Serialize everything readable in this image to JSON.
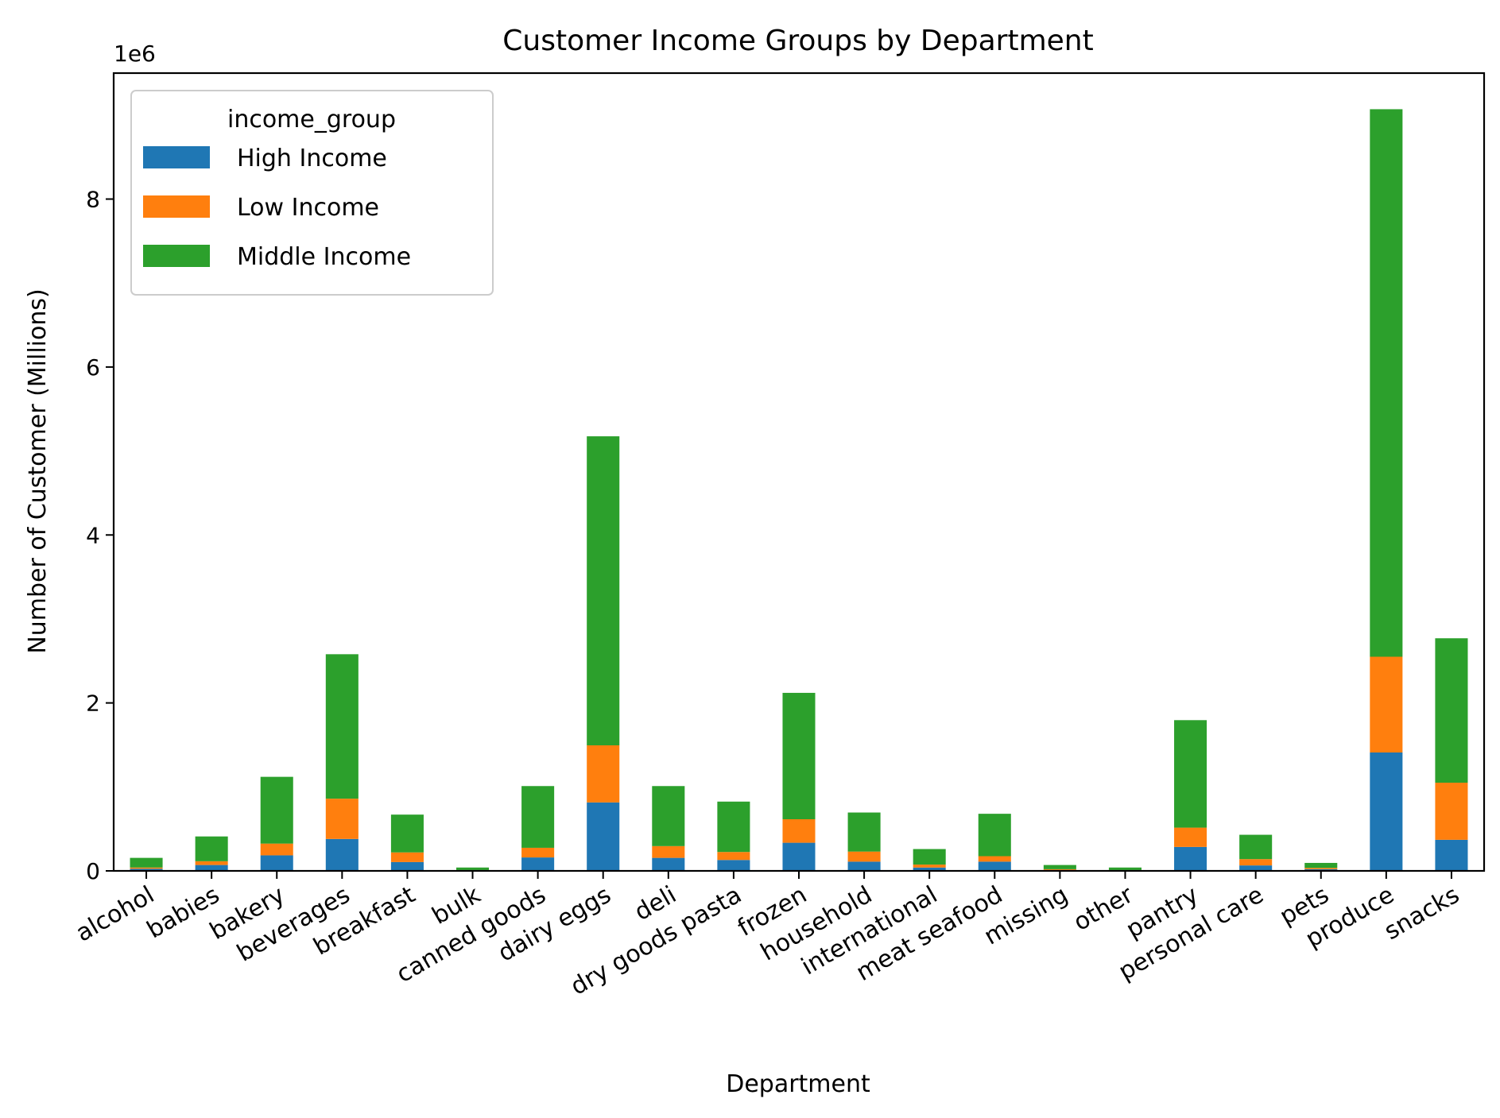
{
  "chart_data": {
    "type": "bar",
    "stacked": true,
    "title": "Customer Income Groups by Department",
    "xlabel": "Department",
    "ylabel": "Number of Customer (Millions)",
    "offset_label": "1e6",
    "ylim": [
      0,
      9500000
    ],
    "yticks": [
      0,
      2000000,
      4000000,
      6000000,
      8000000
    ],
    "ytick_labels": [
      "0",
      "2",
      "4",
      "6",
      "8"
    ],
    "grid": false,
    "legend": {
      "title": "income_group",
      "position": "top-left"
    },
    "categories": [
      "alcohol",
      "babies",
      "bakery",
      "beverages",
      "breakfast",
      "bulk",
      "canned goods",
      "dairy eggs",
      "deli",
      "dry goods pasta",
      "frozen",
      "household",
      "international",
      "meat seafood",
      "missing",
      "other",
      "pantry",
      "personal care",
      "pets",
      "produce",
      "snacks"
    ],
    "series": [
      {
        "name": "High Income",
        "color": "#1f77b4",
        "values": [
          25000,
          70000,
          185000,
          380000,
          105000,
          5000,
          160000,
          815000,
          155000,
          130000,
          335000,
          110000,
          40000,
          110000,
          10000,
          5000,
          285000,
          65000,
          20000,
          1410000,
          370000
        ]
      },
      {
        "name": "Low Income",
        "color": "#ff7f0e",
        "values": [
          15000,
          45000,
          140000,
          480000,
          115000,
          5000,
          115000,
          680000,
          140000,
          95000,
          280000,
          120000,
          35000,
          65000,
          10000,
          5000,
          230000,
          75000,
          15000,
          1140000,
          680000
        ]
      },
      {
        "name": "Middle Income",
        "color": "#2ca02c",
        "values": [
          115000,
          295000,
          795000,
          1720000,
          450000,
          30000,
          735000,
          3680000,
          715000,
          600000,
          1505000,
          465000,
          185000,
          505000,
          50000,
          30000,
          1280000,
          290000,
          60000,
          6520000,
          1720000
        ]
      }
    ]
  }
}
